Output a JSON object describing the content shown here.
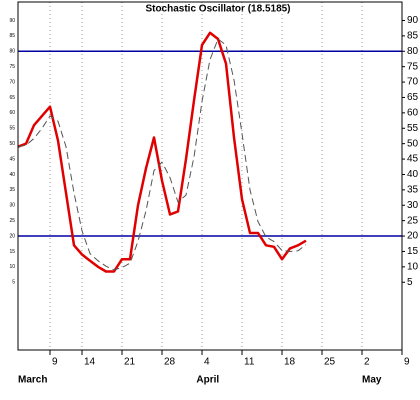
{
  "chart_data": {
    "type": "line",
    "title": "Stochastic Oscillator (18.5185)",
    "x": [
      0,
      1,
      2,
      3,
      4,
      5,
      6,
      7,
      8,
      9,
      10,
      11,
      12,
      13,
      14,
      15,
      16,
      17,
      18,
      19,
      20,
      21,
      22,
      23,
      24,
      25,
      26,
      27,
      28,
      29,
      30,
      31,
      32,
      33,
      34,
      35,
      36
    ],
    "series": [
      {
        "color": "#e00000",
        "width": 2.5,
        "dashed": false,
        "values": [
          49,
          50,
          56,
          59,
          62,
          51,
          34,
          17,
          14,
          12,
          10,
          8.5,
          8.5,
          12.5,
          12.5,
          30,
          42,
          52,
          38,
          27,
          28,
          45,
          64,
          82,
          86,
          84,
          76,
          52,
          32,
          21,
          21,
          17,
          16.5,
          12.5,
          16,
          17,
          18.5
        ]
      },
      {
        "color": "#555555",
        "width": 1,
        "dashed": true,
        "values": [
          49,
          49.5,
          51.7,
          55,
          59,
          57.3,
          49,
          34,
          21.7,
          14.3,
          12,
          10.2,
          9,
          9.8,
          11.2,
          18.3,
          28.2,
          41.3,
          44,
          39,
          31,
          33.3,
          45.7,
          63.7,
          77.3,
          84,
          82,
          70.7,
          53.3,
          35,
          24.7,
          19.7,
          18.2,
          15.3,
          15,
          15.2,
          17.2
        ]
      }
    ],
    "hlines": [
      {
        "value": 80,
        "color": "#0000a0"
      },
      {
        "value": 20,
        "color": "#0000a0"
      }
    ],
    "xlim": [
      0,
      48
    ],
    "xticks": [
      {
        "value": 4,
        "label": "9"
      },
      {
        "value": 8,
        "label": "14"
      },
      {
        "value": 13,
        "label": "21"
      },
      {
        "value": 18,
        "label": "28"
      },
      {
        "value": 23,
        "label": "4"
      },
      {
        "value": 28,
        "label": "11"
      },
      {
        "value": 33,
        "label": "18"
      },
      {
        "value": 38,
        "label": "25"
      },
      {
        "value": 43,
        "label": "2"
      },
      {
        "value": 48,
        "label": "9"
      }
    ],
    "months": [
      {
        "text": "March",
        "x": 0
      },
      {
        "text": "April",
        "x": 22.3
      },
      {
        "text": "May",
        "x": 43
      }
    ],
    "ylim": [
      -17,
      96
    ],
    "yticks": [
      5,
      10,
      15,
      20,
      25,
      30,
      35,
      40,
      45,
      50,
      55,
      60,
      65,
      70,
      75,
      80,
      85,
      90
    ],
    "grid": "x"
  }
}
